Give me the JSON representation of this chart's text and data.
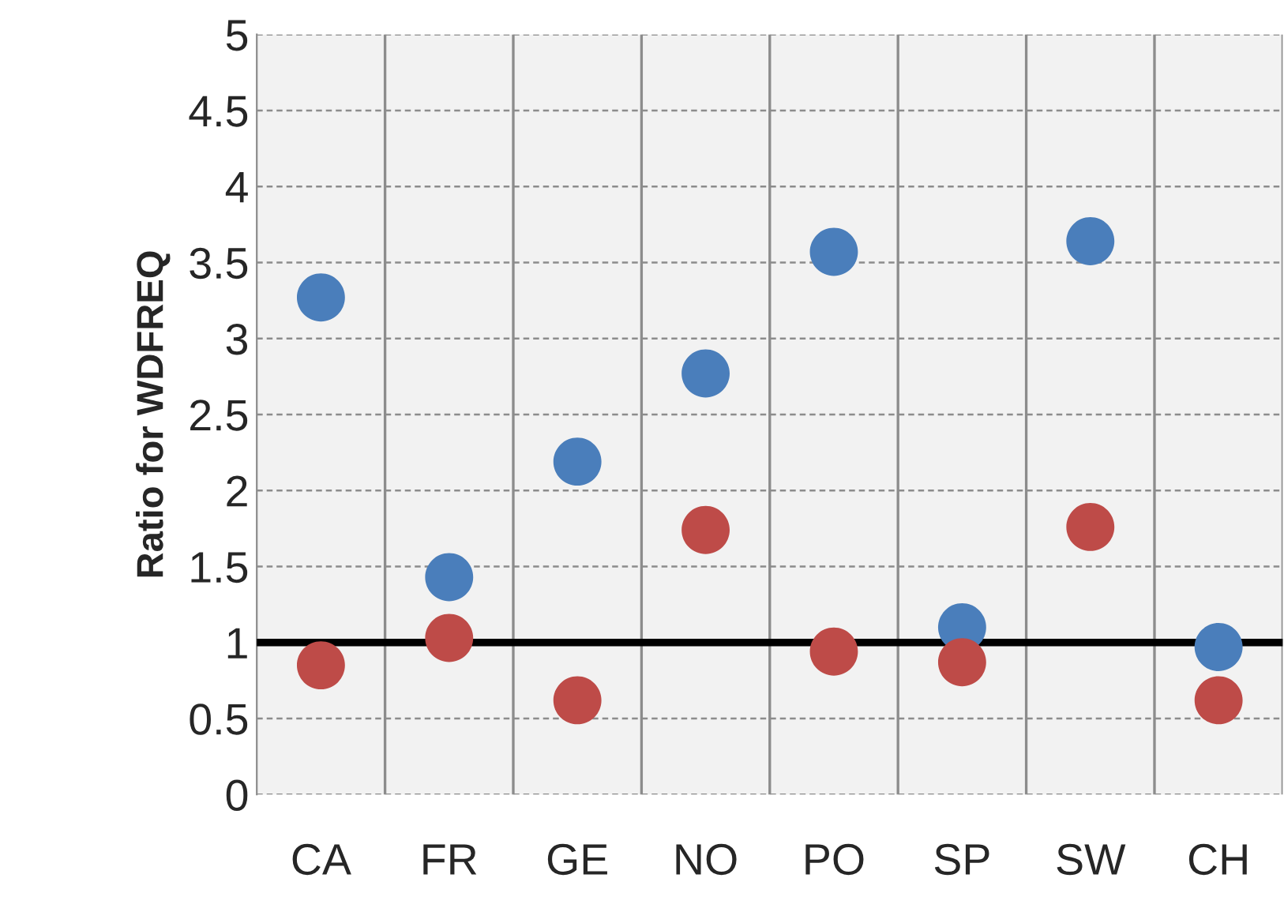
{
  "chart_data": {
    "type": "scatter",
    "ylabel": "Ratio for WDFREQ",
    "categories": [
      "CA",
      "FR",
      "GE",
      "NO",
      "PO",
      "SP",
      "SW",
      "CH"
    ],
    "series": [
      {
        "color": "#4a7ebb",
        "values": [
          3.27,
          1.43,
          2.19,
          2.77,
          3.57,
          1.1,
          3.64,
          0.97
        ]
      },
      {
        "color": "#be4b48",
        "values": [
          0.85,
          1.03,
          0.62,
          1.74,
          0.94,
          0.87,
          1.76,
          0.62
        ]
      }
    ],
    "ylim": [
      0,
      5
    ],
    "yticks": [
      0,
      {
        "value": 0.5,
        "label": "0.5"
      },
      1,
      {
        "value": 1.5,
        "label": "1.5"
      },
      2,
      {
        "value": 2.5,
        "label": "2.5"
      },
      3,
      {
        "value": 3.5,
        "label": "3.5"
      },
      4,
      {
        "value": 4.5,
        "label": "4.5"
      },
      5
    ],
    "ref_lines": [
      {
        "axis": "y",
        "value": 1,
        "color": "#000000"
      }
    ],
    "grid": true,
    "marker": "circle"
  }
}
